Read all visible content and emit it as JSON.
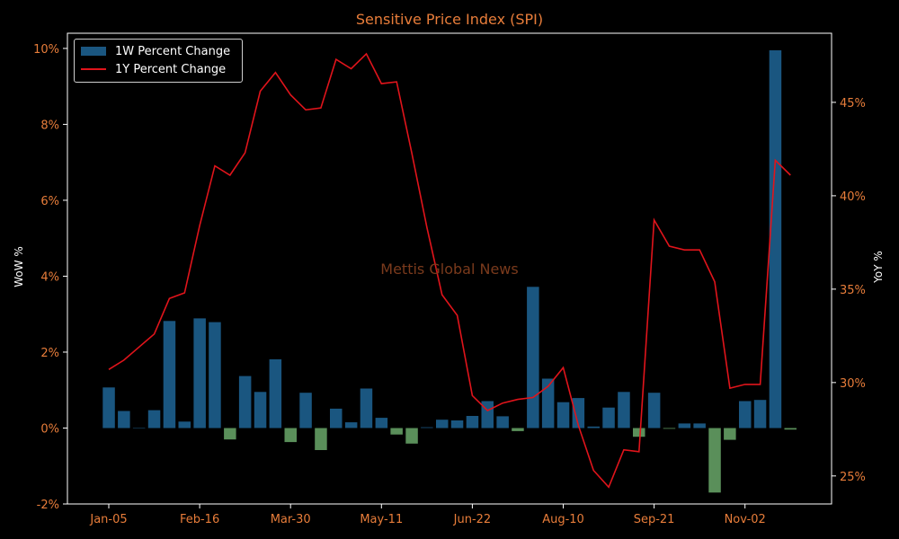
{
  "colors": {
    "accent": "#e87d3a",
    "bar_positive": "#1a5680",
    "bar_negative": "#5a8f5a",
    "line": "#e0141b",
    "axis": "#ffffff",
    "watermark": "#7a3a1c"
  },
  "watermark": "Mettis Global News",
  "chart_data": {
    "type": "bar",
    "title": "Sensitive Price Index (SPI)",
    "xlabel": "",
    "ylabel": "WoW %",
    "y2label": "YoY %",
    "legend": "top-left",
    "grid": false,
    "ylim": [
      -2.0,
      10.4
    ],
    "y2lim": [
      23.5,
      48.7
    ],
    "yticks": [
      "-2%",
      "0%",
      "2%",
      "4%",
      "6%",
      "8%",
      "10%"
    ],
    "y2ticks": [
      "25%",
      "30%",
      "35%",
      "40%",
      "45%"
    ],
    "xticklabels": [
      "Jan-05",
      "Feb-16",
      "Mar-30",
      "May-11",
      "Jun-22",
      "Aug-10",
      "Sep-21",
      "Nov-02"
    ],
    "xtick_index": [
      0,
      6,
      12,
      18,
      24,
      30,
      36,
      42
    ],
    "series": [
      {
        "name": "1W Percent Change",
        "type": "bar",
        "axis": "left",
        "values": [
          1.07,
          0.45,
          0.0,
          0.47,
          2.82,
          0.17,
          2.89,
          2.79,
          -0.3,
          1.37,
          0.95,
          1.81,
          -0.37,
          0.93,
          -0.58,
          0.51,
          0.15,
          1.04,
          0.27,
          -0.17,
          -0.41,
          0.02,
          0.22,
          0.2,
          0.32,
          0.71,
          0.31,
          -0.08,
          3.72,
          1.3,
          0.68,
          0.79,
          0.04,
          0.54,
          0.95,
          -0.23,
          0.93,
          -0.02,
          0.12,
          0.12,
          -1.7,
          -0.31,
          0.71,
          0.74,
          9.95,
          -0.04
        ]
      },
      {
        "name": "1Y Percent Change",
        "type": "line",
        "axis": "right",
        "values": [
          30.7,
          31.2,
          31.9,
          32.6,
          34.5,
          34.8,
          38.4,
          41.6,
          41.1,
          42.3,
          45.6,
          46.6,
          45.4,
          44.6,
          44.7,
          47.3,
          46.8,
          47.6,
          46.0,
          46.1,
          42.3,
          38.3,
          34.7,
          33.6,
          29.3,
          28.5,
          28.9,
          29.1,
          29.2,
          29.8,
          30.8,
          27.7,
          25.3,
          24.4,
          26.4,
          26.3,
          38.7,
          37.3,
          37.1,
          37.1,
          35.4,
          29.7,
          29.9,
          29.9,
          41.9,
          41.1
        ]
      }
    ]
  }
}
